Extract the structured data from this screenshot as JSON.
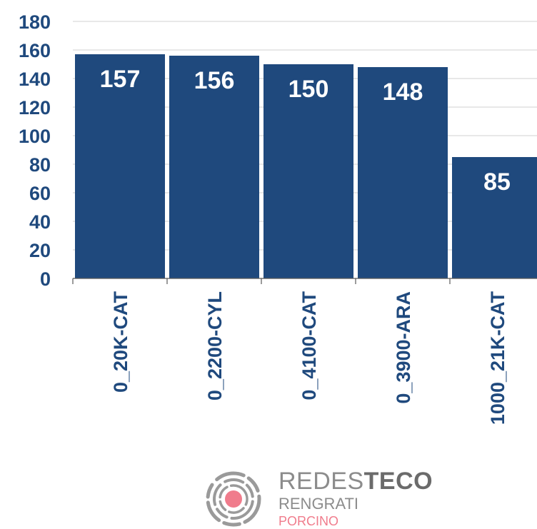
{
  "chart_data": {
    "type": "bar",
    "categories": [
      "0_20K-CAT",
      "0_2200-CYL",
      "0_4100-CAT",
      "0_3900-ARA",
      "1000_21K-CAT"
    ],
    "values": [
      157,
      156,
      150,
      148,
      85
    ],
    "data_labels": [
      "157",
      "156",
      "150",
      "148",
      "85"
    ],
    "yticks": [
      "0",
      "20",
      "40",
      "60",
      "80",
      "100",
      "120",
      "140",
      "160",
      "180"
    ],
    "ylim": [
      0,
      180
    ],
    "grid": true,
    "title": "",
    "xlabel": "",
    "ylabel": ""
  },
  "colors": {
    "bar": "#1f497d",
    "text": "#1f497d",
    "logo_accent": "#f07c8c"
  },
  "logo": {
    "line1_light": "REDES",
    "line1_bold": "TECO",
    "line2": "RENGRATI",
    "line3": "PORCINO",
    "icon": "target-rings-icon"
  }
}
